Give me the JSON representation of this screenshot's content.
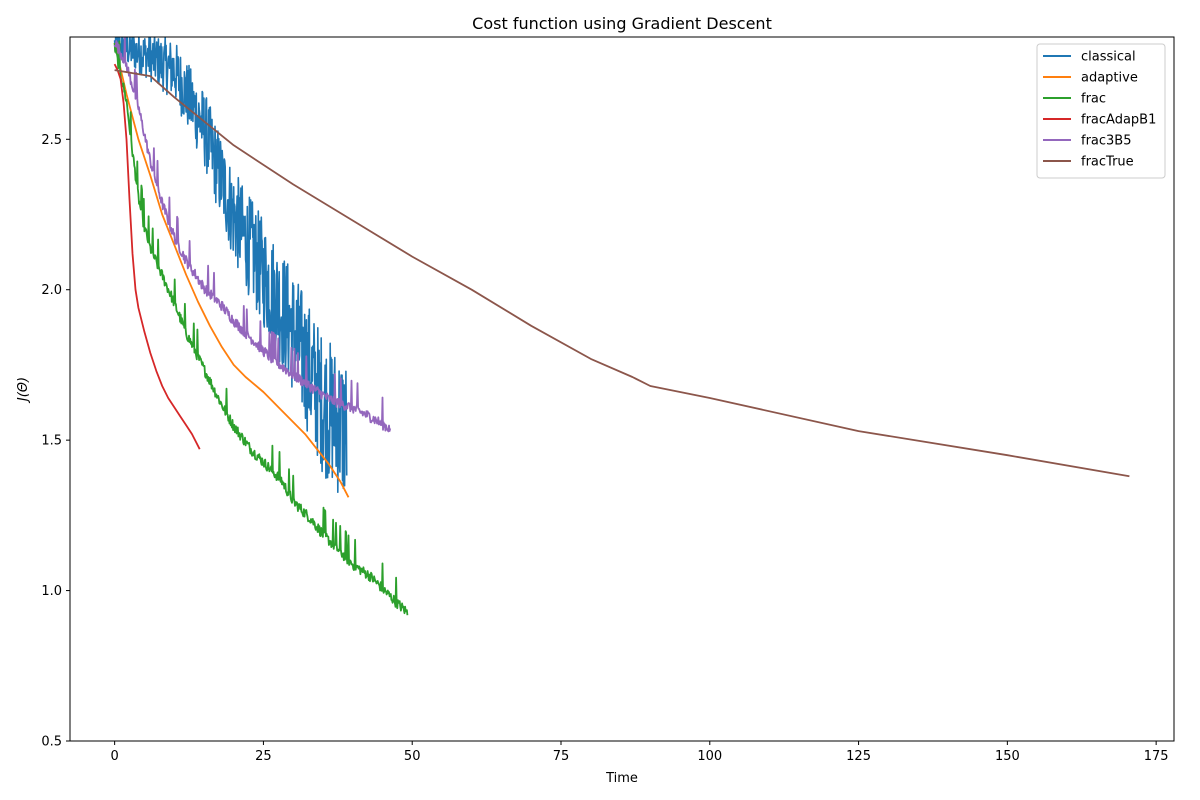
{
  "chart_data": {
    "type": "line",
    "title": "Cost function using Gradient Descent",
    "xlabel": "Time",
    "ylabel": "J(Θ)",
    "xlim": [
      -7.5,
      178
    ],
    "ylim": [
      0.5,
      2.84
    ],
    "x_ticks": [
      0,
      25,
      50,
      75,
      100,
      125,
      150,
      175
    ],
    "y_ticks": [
      0.5,
      1.0,
      1.5,
      2.0,
      2.5
    ],
    "y_tick_labels": [
      "0.5",
      "1.0",
      "1.5",
      "2.0",
      "2.5"
    ],
    "grid": false,
    "legend_position": "top-right",
    "series": [
      {
        "name": "classical",
        "color": "#1f77b4",
        "noise": 0.32,
        "points": [
          [
            0,
            2.8
          ],
          [
            5,
            2.76
          ],
          [
            10,
            2.7
          ],
          [
            15,
            2.5
          ],
          [
            20,
            2.2
          ],
          [
            25,
            2.0
          ],
          [
            30,
            1.8
          ],
          [
            35,
            1.55
          ],
          [
            39,
            1.45
          ]
        ]
      },
      {
        "name": "adaptive",
        "color": "#ff7f0e",
        "noise": 0.0,
        "points": [
          [
            0,
            2.82
          ],
          [
            2,
            2.65
          ],
          [
            4,
            2.5
          ],
          [
            6,
            2.38
          ],
          [
            8,
            2.25
          ],
          [
            10,
            2.15
          ],
          [
            12,
            2.05
          ],
          [
            14,
            1.96
          ],
          [
            16,
            1.88
          ],
          [
            18,
            1.81
          ],
          [
            20,
            1.75
          ],
          [
            22,
            1.71
          ],
          [
            25,
            1.66
          ],
          [
            28,
            1.6
          ],
          [
            30,
            1.56
          ],
          [
            32,
            1.52
          ],
          [
            34,
            1.47
          ],
          [
            36,
            1.42
          ],
          [
            38,
            1.36
          ],
          [
            39.3,
            1.31
          ]
        ]
      },
      {
        "name": "frac",
        "color": "#2ca02c",
        "noise": 0.035,
        "points": [
          [
            0,
            2.8
          ],
          [
            2,
            2.62
          ],
          [
            3,
            2.45
          ],
          [
            4,
            2.3
          ],
          [
            5,
            2.2
          ],
          [
            6,
            2.13
          ],
          [
            8,
            2.04
          ],
          [
            10,
            1.95
          ],
          [
            12,
            1.85
          ],
          [
            15,
            1.73
          ],
          [
            18,
            1.61
          ],
          [
            20,
            1.54
          ],
          [
            23,
            1.46
          ],
          [
            25,
            1.42
          ],
          [
            28,
            1.36
          ],
          [
            30,
            1.29
          ],
          [
            33,
            1.23
          ],
          [
            35,
            1.18
          ],
          [
            38,
            1.12
          ],
          [
            40,
            1.08
          ],
          [
            43,
            1.04
          ],
          [
            45,
            1.0
          ],
          [
            47,
            0.96
          ],
          [
            49.2,
            0.92
          ]
        ]
      },
      {
        "name": "fracAdapB1",
        "color": "#d62728",
        "noise": 0.0,
        "points": [
          [
            0,
            2.75
          ],
          [
            0.5,
            2.73
          ],
          [
            1,
            2.7
          ],
          [
            1.5,
            2.62
          ],
          [
            2,
            2.5
          ],
          [
            2.5,
            2.3
          ],
          [
            3,
            2.12
          ],
          [
            3.5,
            2.0
          ],
          [
            4,
            1.94
          ],
          [
            5,
            1.86
          ],
          [
            6,
            1.79
          ],
          [
            7,
            1.73
          ],
          [
            8,
            1.68
          ],
          [
            9,
            1.64
          ],
          [
            10,
            1.61
          ],
          [
            11,
            1.58
          ],
          [
            12,
            1.55
          ],
          [
            13,
            1.52
          ],
          [
            14.3,
            1.47
          ]
        ]
      },
      {
        "name": "frac3B5",
        "color": "#9467bd",
        "noise": 0.035,
        "points": [
          [
            0,
            2.82
          ],
          [
            2,
            2.74
          ],
          [
            4,
            2.6
          ],
          [
            6,
            2.42
          ],
          [
            8,
            2.28
          ],
          [
            10,
            2.17
          ],
          [
            12,
            2.09
          ],
          [
            15,
            2.0
          ],
          [
            18,
            1.94
          ],
          [
            20,
            1.89
          ],
          [
            23,
            1.83
          ],
          [
            26,
            1.77
          ],
          [
            30,
            1.71
          ],
          [
            33,
            1.67
          ],
          [
            36,
            1.63
          ],
          [
            40,
            1.6
          ],
          [
            43,
            1.57
          ],
          [
            46.3,
            1.53
          ]
        ]
      },
      {
        "name": "fracTrue",
        "color": "#8c564b",
        "noise": 0.0,
        "points": [
          [
            0,
            2.73
          ],
          [
            3,
            2.72
          ],
          [
            6,
            2.71
          ],
          [
            10,
            2.64
          ],
          [
            20,
            2.48
          ],
          [
            30,
            2.35
          ],
          [
            40,
            2.23
          ],
          [
            50,
            2.11
          ],
          [
            60,
            2.0
          ],
          [
            70,
            1.88
          ],
          [
            80,
            1.77
          ],
          [
            87,
            1.71
          ],
          [
            90,
            1.68
          ],
          [
            100,
            1.64
          ],
          [
            125,
            1.53
          ],
          [
            150,
            1.45
          ],
          [
            170.5,
            1.38
          ]
        ]
      }
    ]
  }
}
